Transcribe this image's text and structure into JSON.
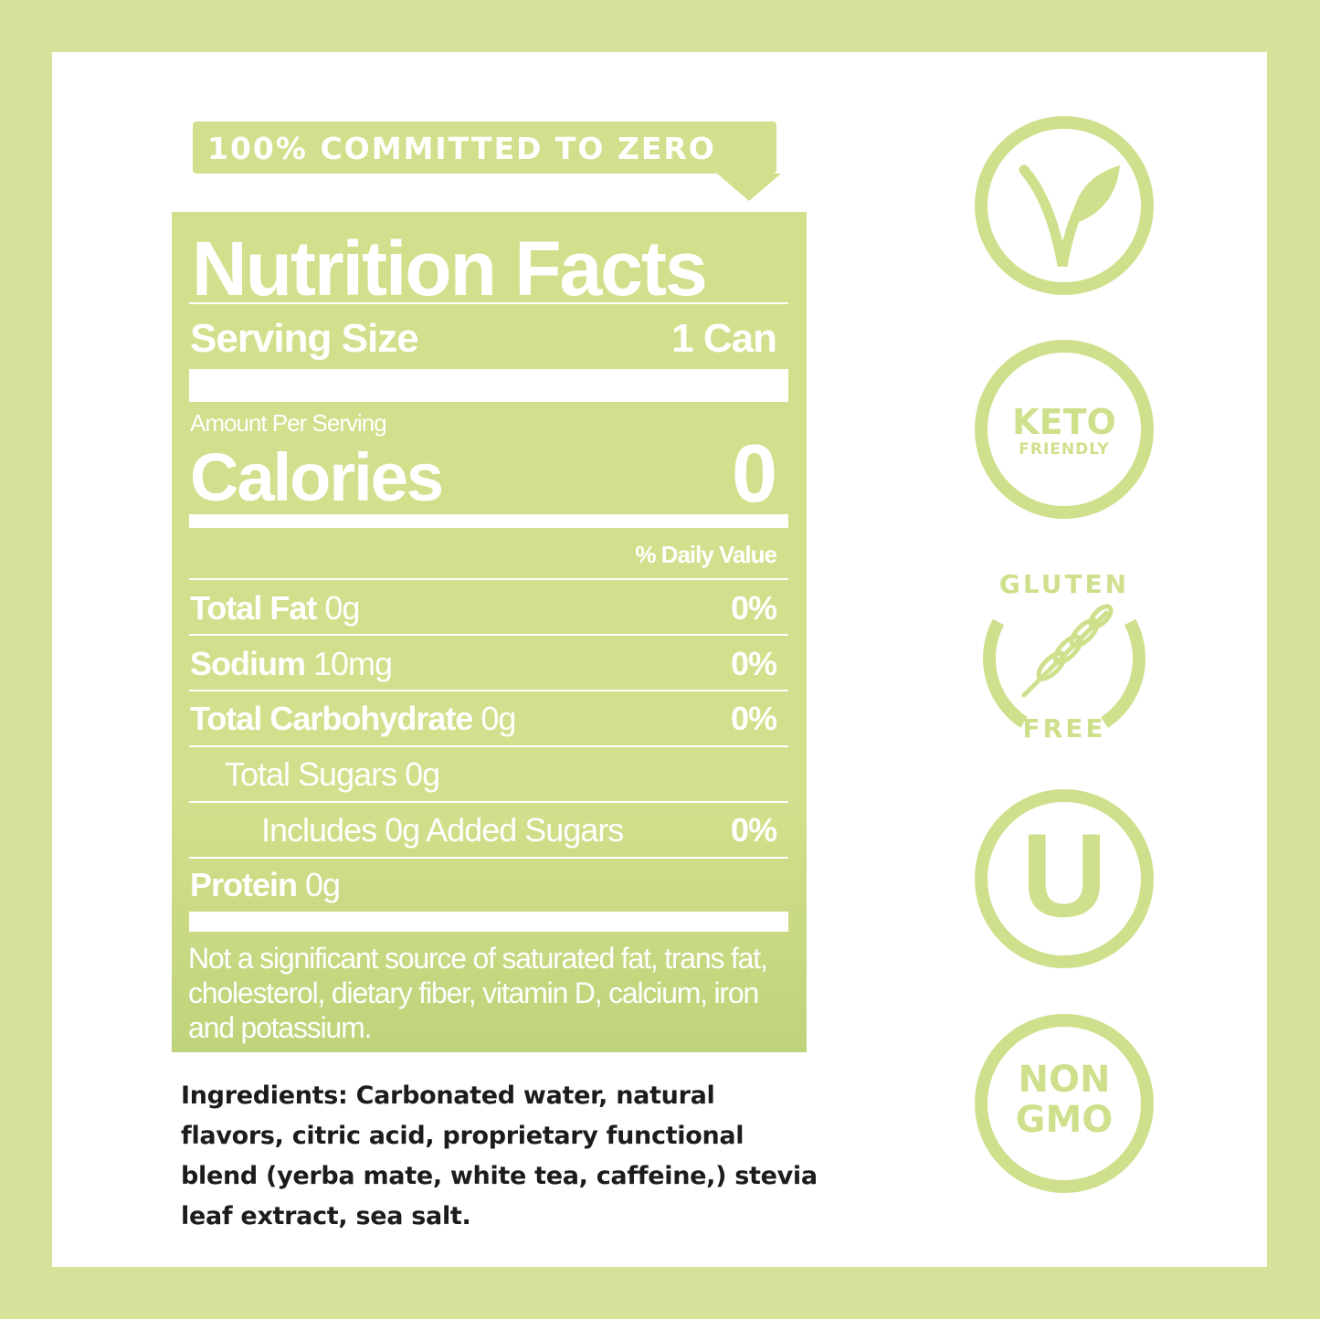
{
  "banner": "100% COMMITTED TO ZERO",
  "label": {
    "title": "Nutrition Facts",
    "serving_label": "Serving Size",
    "serving_value": "1 Can",
    "amount_per_serving": "Amount Per Serving",
    "calories_label": "Calories",
    "calories_value": "0",
    "dv_header": "% Daily Value",
    "rows": [
      {
        "name": "Total Fat",
        "amount": "0g",
        "dv": "0%"
      },
      {
        "name": "Sodium",
        "amount": "10mg",
        "dv": "0%"
      },
      {
        "name": "Total Carbohydrate",
        "amount": "0g",
        "dv": "0%"
      },
      {
        "name": "",
        "amount": "Total Sugars 0g",
        "dv": ""
      },
      {
        "name": "",
        "amount": "Includes 0g Added Sugars",
        "dv": "0%"
      },
      {
        "name": "Protein",
        "amount": "0g",
        "dv": ""
      }
    ],
    "footnote": "Not a significant source of saturated fat, trans fat, cholesterol, dietary fiber, vitamin D, calcium, iron and potassium."
  },
  "ingredients": "Ingredients: Carbonated water, natural flavors, citric acid, proprietary functional blend (yerba mate, white tea, caffeine,) stevia leaf extract, sea salt.",
  "badges": [
    {
      "icon": "vegan-leaf-icon"
    },
    {
      "line1": "KETO",
      "line2": "FRIENDLY"
    },
    {
      "top": "GLUTEN",
      "bottom": "FREE",
      "icon": "wheat-icon"
    },
    {
      "icon": "kosher-u-icon",
      "text": "U"
    },
    {
      "line1": "NON",
      "line2": "GMO"
    }
  ],
  "colors": {
    "accent": "#d3df8c",
    "background": "#d6e29a",
    "text": "#1c1c1c"
  }
}
